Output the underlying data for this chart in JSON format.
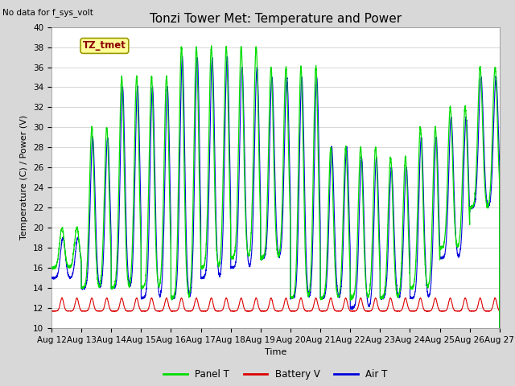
{
  "title": "Tonzi Tower Met: Temperature and Power",
  "top_left_text": "No data for f_sys_volt",
  "annotation_text": "TZ_tmet",
  "ylabel": "Temperature (C) / Power (V)",
  "xlabel": "Time",
  "ylim": [
    10,
    40
  ],
  "yticks": [
    10,
    12,
    14,
    16,
    18,
    20,
    22,
    24,
    26,
    28,
    30,
    32,
    34,
    36,
    38,
    40
  ],
  "xtick_labels": [
    "Aug 12",
    "Aug 13",
    "Aug 14",
    "Aug 15",
    "Aug 16",
    "Aug 17",
    "Aug 18",
    "Aug 19",
    "Aug 20",
    "Aug 21",
    "Aug 22",
    "Aug 23",
    "Aug 24",
    "Aug 25",
    "Aug 26",
    "Aug 27"
  ],
  "bg_color": "#d8d8d8",
  "plot_bg_color": "#ffffff",
  "panel_t_color": "#00dd00",
  "battery_v_color": "#dd0000",
  "air_t_color": "#0000dd",
  "legend_labels": [
    "Panel T",
    "Battery V",
    "Air T"
  ],
  "n_days": 15,
  "title_fontsize": 11,
  "axis_fontsize": 8,
  "tick_fontsize": 7.5
}
